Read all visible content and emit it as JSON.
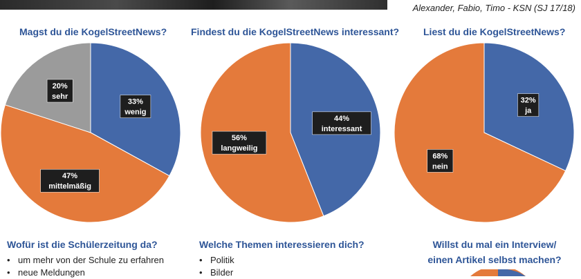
{
  "header": {
    "credit": "Alexander, Fabio, Timo - KSN (SJ 17/18)"
  },
  "chart_data": [
    {
      "type": "pie",
      "title": "Magst du die KogelStreetNews?",
      "slices": [
        {
          "label": "wenig",
          "value": 33,
          "display": "33%",
          "color": "#4468a8"
        },
        {
          "label": "mittelmäßig",
          "value": 47,
          "display": "47%",
          "color": "#e47a3b"
        },
        {
          "label": "sehr",
          "value": 20,
          "display": "20%",
          "color": "#9b9b9b"
        }
      ]
    },
    {
      "type": "pie",
      "title": "Findest du die KogelStreetNews interessant?",
      "slices": [
        {
          "label": "interessant",
          "value": 44,
          "display": "44%",
          "color": "#4468a8"
        },
        {
          "label": "langweilig",
          "value": 56,
          "display": "56%",
          "color": "#e47a3b"
        }
      ]
    },
    {
      "type": "pie",
      "title": "Liest du die KogelStreetNews?",
      "slices": [
        {
          "label": "ja",
          "value": 32,
          "display": "32%",
          "color": "#4468a8"
        },
        {
          "label": "nein",
          "value": 68,
          "display": "68%",
          "color": "#e47a3b"
        }
      ]
    }
  ],
  "questions": {
    "q1": {
      "title": "Wofür ist die Schülerzeitung da?",
      "items": [
        "um mehr von der Schule zu erfahren",
        "neue Meldungen"
      ]
    },
    "q2": {
      "title": "Welche Themen interessieren dich?",
      "items": [
        "Politik",
        "Bilder"
      ]
    },
    "q3": {
      "title_line1": "Willst du mal ein Interview/",
      "title_line2": "einen Artikel selbst machen?"
    }
  }
}
